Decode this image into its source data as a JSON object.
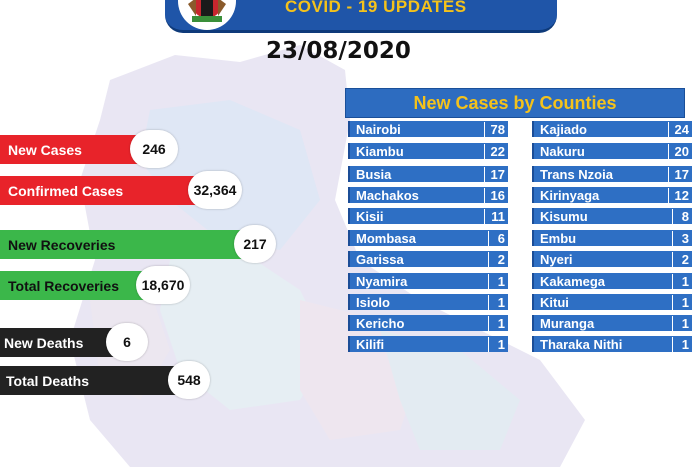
{
  "header": {
    "title": "COVID - 19 UPDATES",
    "date": "23/08/2020"
  },
  "stats": [
    {
      "label": "New Cases",
      "value": "246"
    },
    {
      "label": "Confirmed Cases",
      "value": "32,364"
    },
    {
      "label": "New Recoveries",
      "value": "217"
    },
    {
      "label": "Total Recoveries",
      "value": "18,670"
    },
    {
      "label": "New Deaths",
      "value": "6"
    },
    {
      "label": "Total Deaths",
      "value": "548"
    }
  ],
  "counties": {
    "title": "New Cases by Counties",
    "left": [
      {
        "name": "Nairobi",
        "value": "78"
      },
      {
        "name": "Kiambu",
        "value": "22"
      },
      {
        "name": "Busia",
        "value": "17"
      },
      {
        "name": "Machakos",
        "value": "16"
      },
      {
        "name": "Kisii",
        "value": "11"
      },
      {
        "name": "Mombasa",
        "value": "6"
      },
      {
        "name": "Garissa",
        "value": "2"
      },
      {
        "name": "Nyamira",
        "value": "1"
      },
      {
        "name": "Isiolo",
        "value": "1"
      },
      {
        "name": "Kericho",
        "value": "1"
      },
      {
        "name": "Kilifi",
        "value": "1"
      }
    ],
    "right": [
      {
        "name": "Kajiado",
        "value": "24"
      },
      {
        "name": "Nakuru",
        "value": "20"
      },
      {
        "name": "Trans Nzoia",
        "value": "17"
      },
      {
        "name": "Kirinyaga",
        "value": "12"
      },
      {
        "name": "Kisumu",
        "value": "8"
      },
      {
        "name": "Embu",
        "value": "3"
      },
      {
        "name": "Nyeri",
        "value": "2"
      },
      {
        "name": "Kakamega",
        "value": "1"
      },
      {
        "name": "Kitui",
        "value": "1"
      },
      {
        "name": "Muranga",
        "value": "1"
      },
      {
        "name": "Tharaka Nithi",
        "value": "1"
      }
    ]
  }
}
